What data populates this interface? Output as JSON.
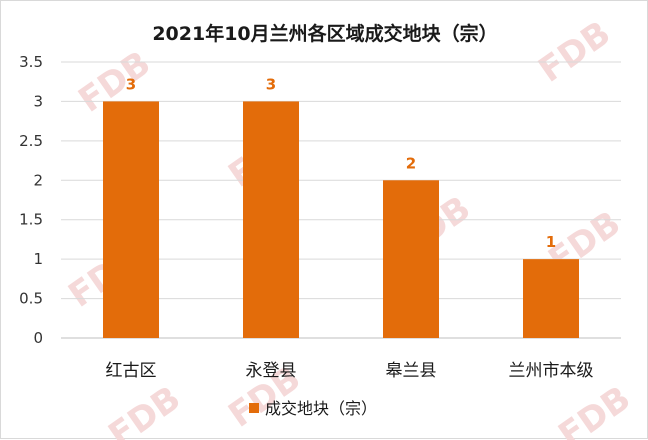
{
  "chart_data": {
    "type": "bar",
    "title": "2021年10月兰州各区域成交地块（宗）",
    "categories": [
      "红古区",
      "永登县",
      "皋兰县",
      "兰州市本级"
    ],
    "series": [
      {
        "name": "成交地块（宗）",
        "values": [
          3,
          3,
          2,
          1
        ]
      }
    ],
    "data_labels": [
      "3",
      "3",
      "2",
      "1"
    ],
    "ylim": [
      0,
      3.5
    ],
    "yticks": [
      "0",
      "0.5",
      "1",
      "1.5",
      "2",
      "2.5",
      "3",
      "3.5"
    ],
    "ytick_values": [
      0,
      0.5,
      1,
      1.5,
      2,
      2.5,
      3,
      3.5
    ],
    "grid": true,
    "legend_position": "bottom",
    "xlabel": "",
    "ylabel": ""
  },
  "watermark": "FDB",
  "colors": {
    "bar": "#E36C0A",
    "label": "#E36C0A",
    "grid": "#d9d9d9"
  }
}
